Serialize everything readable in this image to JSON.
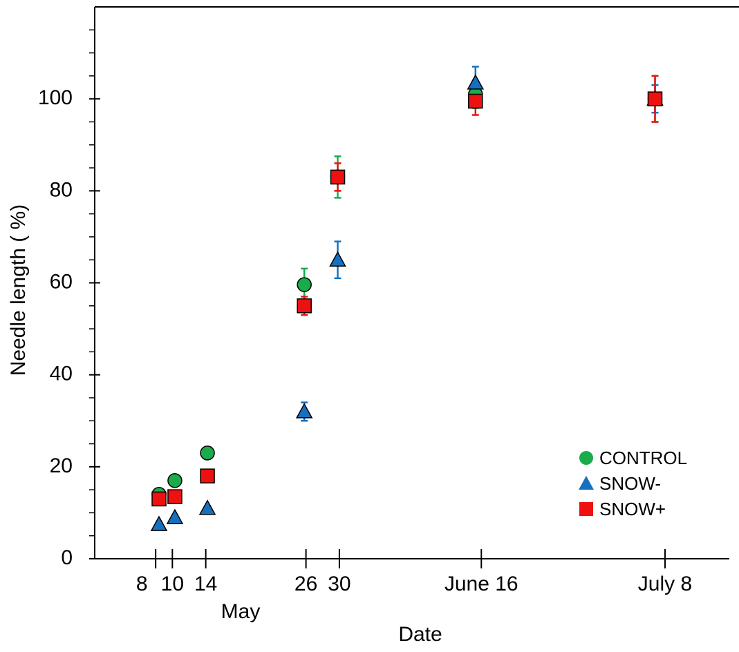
{
  "chart_data": {
    "type": "scatter",
    "x_label": "Date",
    "x_sublabel": "May",
    "y_label": "Needle length ( %)",
    "x": [
      8.4,
      10.3,
      14.2,
      25.8,
      29.8,
      46.3,
      67.8
    ],
    "xlim": [
      0.7,
      76.7
    ],
    "xticks": [
      8,
      10,
      14,
      26,
      30,
      {
        "value": 47,
        "label": "June 16"
      },
      {
        "value": 69,
        "label": "July 8"
      }
    ],
    "ylim": [
      0,
      120
    ],
    "yticks": [
      0,
      20,
      40,
      60,
      80,
      100
    ],
    "y_minor_ticks": [
      5,
      10,
      15,
      25,
      30,
      35,
      45,
      50,
      55,
      65,
      70,
      75,
      85,
      90,
      95,
      105,
      110,
      115
    ],
    "legend": "lower right",
    "series": [
      {
        "name": "CONTROL",
        "color": "#1aab4b",
        "marker": "circle",
        "values": [
          14,
          17,
          23,
          59.6,
          83,
          101,
          100
        ],
        "errors": [
          0.5,
          0.5,
          0.5,
          3.5,
          4.5,
          3,
          5
        ]
      },
      {
        "name": "SNOW-",
        "color": "#1670c0",
        "marker": "triangle",
        "values": [
          7.5,
          9,
          11,
          32,
          65,
          103.5,
          100
        ],
        "errors": [
          0.5,
          0.5,
          0.5,
          2,
          4,
          3.5,
          3
        ]
      },
      {
        "name": "SNOW+",
        "color": "#ee1111",
        "marker": "square",
        "values": [
          13,
          13.5,
          18,
          55,
          83,
          99.5,
          100
        ],
        "errors": [
          0.5,
          0.5,
          0.5,
          2,
          3,
          3,
          5
        ]
      }
    ]
  }
}
